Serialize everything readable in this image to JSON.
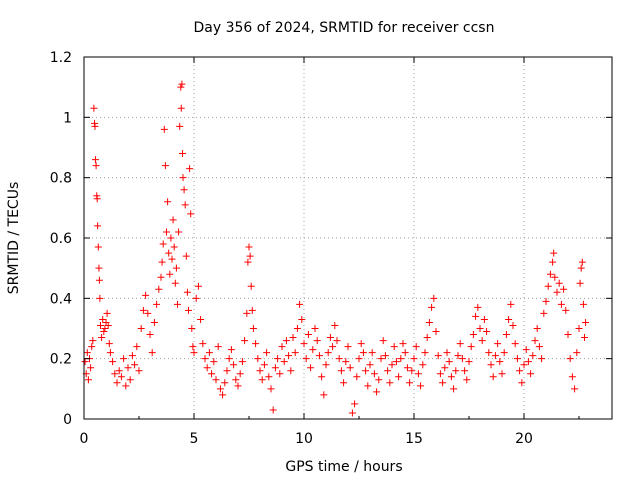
{
  "chart_data": {
    "type": "scatter",
    "title": "Day 356 of 2024, SRMTID for receiver ccsn",
    "xlabel": "GPS time / hours",
    "ylabel": "SRMTID / TECUs",
    "xlim": [
      0,
      24
    ],
    "ylim": [
      0,
      1.2
    ],
    "xticks": [
      0,
      5,
      10,
      15,
      20
    ],
    "xtick_labels": [
      "0",
      "5",
      "10",
      "15",
      "20"
    ],
    "yticks": [
      0,
      0.2,
      0.4,
      0.6,
      0.8,
      1.0,
      1.2
    ],
    "ytick_labels": [
      "0",
      "0.2",
      "0.4",
      "0.6",
      "0.8",
      "1",
      "1.2"
    ],
    "grid": true,
    "marker": "+",
    "color": "#ff0000",
    "series": [
      {
        "name": "SRMTID",
        "points": [
          [
            0.05,
            0.19
          ],
          [
            0.1,
            0.15
          ],
          [
            0.15,
            0.22
          ],
          [
            0.2,
            0.13
          ],
          [
            0.25,
            0.2
          ],
          [
            0.3,
            0.17
          ],
          [
            0.35,
            0.24
          ],
          [
            0.4,
            0.26
          ],
          [
            0.45,
            1.03
          ],
          [
            0.48,
            0.98
          ],
          [
            0.5,
            0.97
          ],
          [
            0.52,
            0.86
          ],
          [
            0.55,
            0.84
          ],
          [
            0.58,
            0.74
          ],
          [
            0.6,
            0.73
          ],
          [
            0.62,
            0.64
          ],
          [
            0.65,
            0.57
          ],
          [
            0.68,
            0.5
          ],
          [
            0.7,
            0.46
          ],
          [
            0.72,
            0.4
          ],
          [
            0.75,
            0.31
          ],
          [
            0.8,
            0.27
          ],
          [
            0.85,
            0.33
          ],
          [
            0.9,
            0.29
          ],
          [
            0.95,
            0.3
          ],
          [
            1.0,
            0.32
          ],
          [
            1.05,
            0.35
          ],
          [
            1.1,
            0.31
          ],
          [
            1.15,
            0.25
          ],
          [
            1.2,
            0.22
          ],
          [
            1.3,
            0.19
          ],
          [
            1.4,
            0.15
          ],
          [
            1.5,
            0.12
          ],
          [
            1.6,
            0.16
          ],
          [
            1.7,
            0.14
          ],
          [
            1.8,
            0.2
          ],
          [
            1.9,
            0.11
          ],
          [
            2.0,
            0.17
          ],
          [
            2.1,
            0.13
          ],
          [
            2.2,
            0.21
          ],
          [
            2.3,
            0.18
          ],
          [
            2.4,
            0.24
          ],
          [
            2.5,
            0.16
          ],
          [
            2.6,
            0.3
          ],
          [
            2.7,
            0.36
          ],
          [
            2.8,
            0.41
          ],
          [
            2.9,
            0.35
          ],
          [
            3.0,
            0.28
          ],
          [
            3.1,
            0.22
          ],
          [
            3.2,
            0.32
          ],
          [
            3.3,
            0.38
          ],
          [
            3.4,
            0.43
          ],
          [
            3.5,
            0.47
          ],
          [
            3.55,
            0.52
          ],
          [
            3.6,
            0.58
          ],
          [
            3.65,
            0.96
          ],
          [
            3.7,
            0.84
          ],
          [
            3.75,
            0.62
          ],
          [
            3.8,
            0.72
          ],
          [
            3.85,
            0.55
          ],
          [
            3.9,
            0.48
          ],
          [
            3.95,
            0.6
          ],
          [
            4.0,
            0.53
          ],
          [
            4.05,
            0.66
          ],
          [
            4.1,
            0.57
          ],
          [
            4.15,
            0.45
          ],
          [
            4.2,
            0.5
          ],
          [
            4.25,
            0.38
          ],
          [
            4.3,
            0.62
          ],
          [
            4.35,
            0.97
          ],
          [
            4.4,
            1.1
          ],
          [
            4.42,
            1.03
          ],
          [
            4.45,
            1.11
          ],
          [
            4.48,
            0.88
          ],
          [
            4.5,
            0.8
          ],
          [
            4.55,
            0.76
          ],
          [
            4.6,
            0.71
          ],
          [
            4.65,
            0.54
          ],
          [
            4.7,
            0.42
          ],
          [
            4.75,
            0.36
          ],
          [
            4.8,
            0.83
          ],
          [
            4.85,
            0.68
          ],
          [
            4.9,
            0.3
          ],
          [
            4.95,
            0.24
          ],
          [
            5.0,
            0.22
          ],
          [
            5.1,
            0.4
          ],
          [
            5.2,
            0.44
          ],
          [
            5.3,
            0.33
          ],
          [
            5.4,
            0.25
          ],
          [
            5.5,
            0.2
          ],
          [
            5.6,
            0.17
          ],
          [
            5.7,
            0.22
          ],
          [
            5.8,
            0.15
          ],
          [
            5.9,
            0.19
          ],
          [
            6.0,
            0.13
          ],
          [
            6.1,
            0.24
          ],
          [
            6.2,
            0.1
          ],
          [
            6.3,
            0.08
          ],
          [
            6.4,
            0.12
          ],
          [
            6.5,
            0.16
          ],
          [
            6.6,
            0.2
          ],
          [
            6.7,
            0.23
          ],
          [
            6.8,
            0.18
          ],
          [
            6.9,
            0.13
          ],
          [
            7.0,
            0.11
          ],
          [
            7.1,
            0.15
          ],
          [
            7.2,
            0.19
          ],
          [
            7.3,
            0.26
          ],
          [
            7.4,
            0.35
          ],
          [
            7.45,
            0.52
          ],
          [
            7.5,
            0.57
          ],
          [
            7.55,
            0.54
          ],
          [
            7.6,
            0.44
          ],
          [
            7.65,
            0.36
          ],
          [
            7.7,
            0.3
          ],
          [
            7.8,
            0.25
          ],
          [
            7.9,
            0.2
          ],
          [
            8.0,
            0.16
          ],
          [
            8.1,
            0.13
          ],
          [
            8.2,
            0.18
          ],
          [
            8.3,
            0.22
          ],
          [
            8.4,
            0.14
          ],
          [
            8.5,
            0.1
          ],
          [
            8.6,
            0.03
          ],
          [
            8.7,
            0.17
          ],
          [
            8.8,
            0.2
          ],
          [
            8.9,
            0.15
          ],
          [
            9.0,
            0.24
          ],
          [
            9.1,
            0.19
          ],
          [
            9.2,
            0.26
          ],
          [
            9.3,
            0.21
          ],
          [
            9.4,
            0.16
          ],
          [
            9.5,
            0.27
          ],
          [
            9.6,
            0.22
          ],
          [
            9.7,
            0.3
          ],
          [
            9.8,
            0.38
          ],
          [
            9.9,
            0.33
          ],
          [
            10.0,
            0.25
          ],
          [
            10.1,
            0.2
          ],
          [
            10.2,
            0.28
          ],
          [
            10.3,
            0.17
          ],
          [
            10.4,
            0.23
          ],
          [
            10.5,
            0.3
          ],
          [
            10.6,
            0.26
          ],
          [
            10.7,
            0.21
          ],
          [
            10.8,
            0.14
          ],
          [
            10.9,
            0.08
          ],
          [
            11.0,
            0.18
          ],
          [
            11.1,
            0.22
          ],
          [
            11.2,
            0.27
          ],
          [
            11.3,
            0.24
          ],
          [
            11.4,
            0.31
          ],
          [
            11.5,
            0.26
          ],
          [
            11.6,
            0.2
          ],
          [
            11.7,
            0.16
          ],
          [
            11.8,
            0.12
          ],
          [
            11.9,
            0.19
          ],
          [
            12.0,
            0.24
          ],
          [
            12.1,
            0.17
          ],
          [
            12.2,
            0.02
          ],
          [
            12.3,
            0.05
          ],
          [
            12.4,
            0.14
          ],
          [
            12.5,
            0.2
          ],
          [
            12.6,
            0.25
          ],
          [
            12.7,
            0.22
          ],
          [
            12.8,
            0.16
          ],
          [
            12.9,
            0.11
          ],
          [
            13.0,
            0.18
          ],
          [
            13.1,
            0.22
          ],
          [
            13.2,
            0.15
          ],
          [
            13.3,
            0.09
          ],
          [
            13.4,
            0.13
          ],
          [
            13.5,
            0.2
          ],
          [
            13.6,
            0.26
          ],
          [
            13.7,
            0.21
          ],
          [
            13.8,
            0.16
          ],
          [
            13.9,
            0.12
          ],
          [
            14.0,
            0.18
          ],
          [
            14.1,
            0.24
          ],
          [
            14.2,
            0.19
          ],
          [
            14.3,
            0.14
          ],
          [
            14.4,
            0.2
          ],
          [
            14.5,
            0.25
          ],
          [
            14.6,
            0.22
          ],
          [
            14.7,
            0.17
          ],
          [
            14.8,
            0.12
          ],
          [
            14.9,
            0.16
          ],
          [
            15.0,
            0.2
          ],
          [
            15.1,
            0.24
          ],
          [
            15.2,
            0.15
          ],
          [
            15.3,
            0.11
          ],
          [
            15.4,
            0.18
          ],
          [
            15.5,
            0.22
          ],
          [
            15.6,
            0.27
          ],
          [
            15.7,
            0.32
          ],
          [
            15.8,
            0.37
          ],
          [
            15.9,
            0.4
          ],
          [
            16.0,
            0.29
          ],
          [
            16.1,
            0.21
          ],
          [
            16.2,
            0.15
          ],
          [
            16.3,
            0.12
          ],
          [
            16.4,
            0.17
          ],
          [
            16.5,
            0.22
          ],
          [
            16.6,
            0.19
          ],
          [
            16.7,
            0.14
          ],
          [
            16.8,
            0.1
          ],
          [
            16.9,
            0.16
          ],
          [
            17.0,
            0.21
          ],
          [
            17.1,
            0.25
          ],
          [
            17.2,
            0.2
          ],
          [
            17.3,
            0.16
          ],
          [
            17.4,
            0.13
          ],
          [
            17.5,
            0.19
          ],
          [
            17.6,
            0.24
          ],
          [
            17.7,
            0.28
          ],
          [
            17.8,
            0.34
          ],
          [
            17.9,
            0.37
          ],
          [
            18.0,
            0.3
          ],
          [
            18.1,
            0.26
          ],
          [
            18.2,
            0.33
          ],
          [
            18.3,
            0.29
          ],
          [
            18.4,
            0.22
          ],
          [
            18.5,
            0.18
          ],
          [
            18.6,
            0.14
          ],
          [
            18.7,
            0.21
          ],
          [
            18.8,
            0.25
          ],
          [
            18.9,
            0.19
          ],
          [
            19.0,
            0.15
          ],
          [
            19.1,
            0.22
          ],
          [
            19.2,
            0.28
          ],
          [
            19.3,
            0.33
          ],
          [
            19.4,
            0.38
          ],
          [
            19.5,
            0.31
          ],
          [
            19.6,
            0.25
          ],
          [
            19.7,
            0.2
          ],
          [
            19.8,
            0.16
          ],
          [
            19.9,
            0.12
          ],
          [
            20.0,
            0.18
          ],
          [
            20.1,
            0.23
          ],
          [
            20.2,
            0.19
          ],
          [
            20.3,
            0.15
          ],
          [
            20.4,
            0.21
          ],
          [
            20.5,
            0.26
          ],
          [
            20.6,
            0.3
          ],
          [
            20.7,
            0.24
          ],
          [
            20.8,
            0.2
          ],
          [
            20.9,
            0.35
          ],
          [
            21.0,
            0.39
          ],
          [
            21.1,
            0.44
          ],
          [
            21.2,
            0.48
          ],
          [
            21.3,
            0.52
          ],
          [
            21.35,
            0.55
          ],
          [
            21.4,
            0.47
          ],
          [
            21.5,
            0.42
          ],
          [
            21.6,
            0.45
          ],
          [
            21.7,
            0.38
          ],
          [
            21.8,
            0.43
          ],
          [
            21.9,
            0.36
          ],
          [
            22.0,
            0.28
          ],
          [
            22.1,
            0.2
          ],
          [
            22.2,
            0.14
          ],
          [
            22.3,
            0.1
          ],
          [
            22.4,
            0.22
          ],
          [
            22.5,
            0.3
          ],
          [
            22.55,
            0.45
          ],
          [
            22.6,
            0.5
          ],
          [
            22.65,
            0.52
          ],
          [
            22.7,
            0.38
          ],
          [
            22.75,
            0.27
          ],
          [
            22.8,
            0.32
          ]
        ]
      }
    ]
  }
}
